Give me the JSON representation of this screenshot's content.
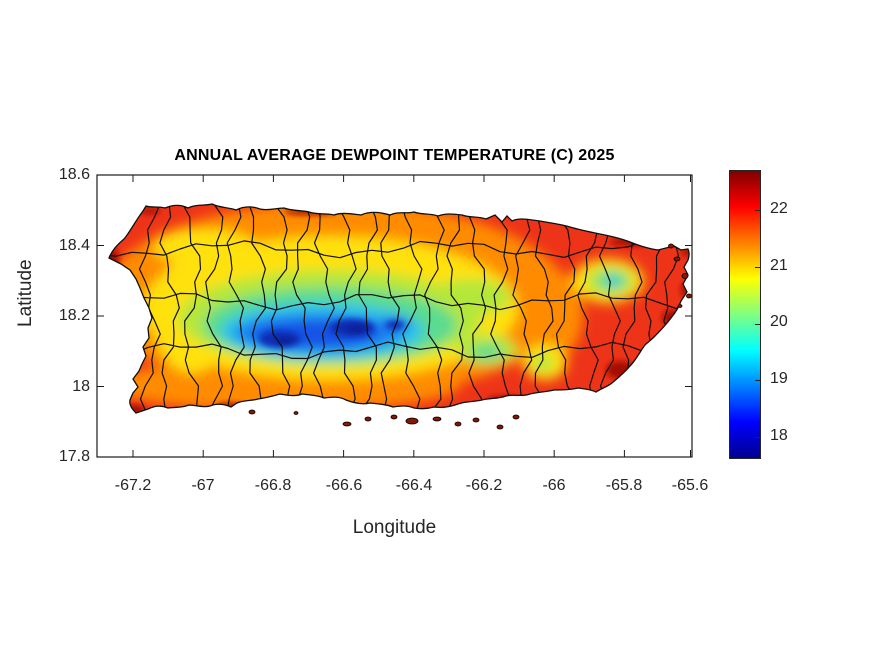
{
  "title": "ANNUAL AVERAGE DEWPOINT TEMPERATURE (C) 2025",
  "axes": {
    "xlabel": "Longitude",
    "ylabel": "Latitude",
    "x_ticks": [
      "-67.2",
      "-67",
      "-66.8",
      "-66.6",
      "-66.4",
      "-66.2",
      "-66",
      "-65.8",
      "-65.6"
    ],
    "y_ticks": [
      "18.6",
      "18.4",
      "18.2",
      "18",
      "17.8"
    ]
  },
  "colorbar": {
    "tick_labels": [
      "22",
      "21",
      "20",
      "19",
      "18"
    ],
    "colormap": "jet",
    "clim": [
      17.6,
      22.7
    ]
  },
  "chart_data": {
    "type": "heatmap",
    "subtype": "filled-contour-map",
    "title": "ANNUAL AVERAGE DEWPOINT TEMPERATURE (C) 2025",
    "xlabel": "Longitude",
    "ylabel": "Latitude",
    "region": "Puerto Rico",
    "overlay": "municipality boundaries (black)",
    "units": "degrees C",
    "colormap": "jet",
    "xlim": [
      -67.3,
      -65.6
    ],
    "ylim": [
      17.8,
      18.6
    ],
    "value_range": [
      17.6,
      22.7
    ],
    "pattern": "Warm red/orange dewpoints (21.5-22.7 C) along all coasts, grading through yellow and green inland; pronounced cool blue minimum (17.6-18.5 C) along the central Cordillera near lat 18.12-18.18, lon -66.95 to -66.35; secondary cool green spot (about 20 C) at El Yunque near lon -65.78, lat 18.28; small offshore cays south and northeast of the island.",
    "sample_points": [
      {
        "lon": -67.25,
        "lat": 18.36,
        "value": 22.3
      },
      {
        "lon": -67.0,
        "lat": 18.45,
        "value": 21.6
      },
      {
        "lon": -66.6,
        "lat": 18.46,
        "value": 21.4
      },
      {
        "lon": -66.1,
        "lat": 18.44,
        "value": 22.2
      },
      {
        "lon": -65.75,
        "lat": 18.33,
        "value": 22.4
      },
      {
        "lon": -66.78,
        "lat": 18.16,
        "value": 17.7
      },
      {
        "lon": -66.57,
        "lat": 18.17,
        "value": 17.6
      },
      {
        "lon": -66.95,
        "lat": 18.18,
        "value": 18.8
      },
      {
        "lon": -66.35,
        "lat": 18.2,
        "value": 19.6
      },
      {
        "lon": -65.78,
        "lat": 18.28,
        "value": 20.0
      },
      {
        "lon": -66.05,
        "lat": 18.25,
        "value": 21.8
      },
      {
        "lon": -66.45,
        "lat": 17.98,
        "value": 22.2
      },
      {
        "lon": -66.15,
        "lat": 17.97,
        "value": 22.5
      },
      {
        "lon": -67.15,
        "lat": 18.02,
        "value": 21.9
      },
      {
        "lon": -66.9,
        "lat": 18.32,
        "value": 20.4
      },
      {
        "lon": -66.25,
        "lat": 18.08,
        "value": 20.9
      },
      {
        "lon": -65.9,
        "lat": 18.05,
        "value": 22.3
      }
    ]
  }
}
